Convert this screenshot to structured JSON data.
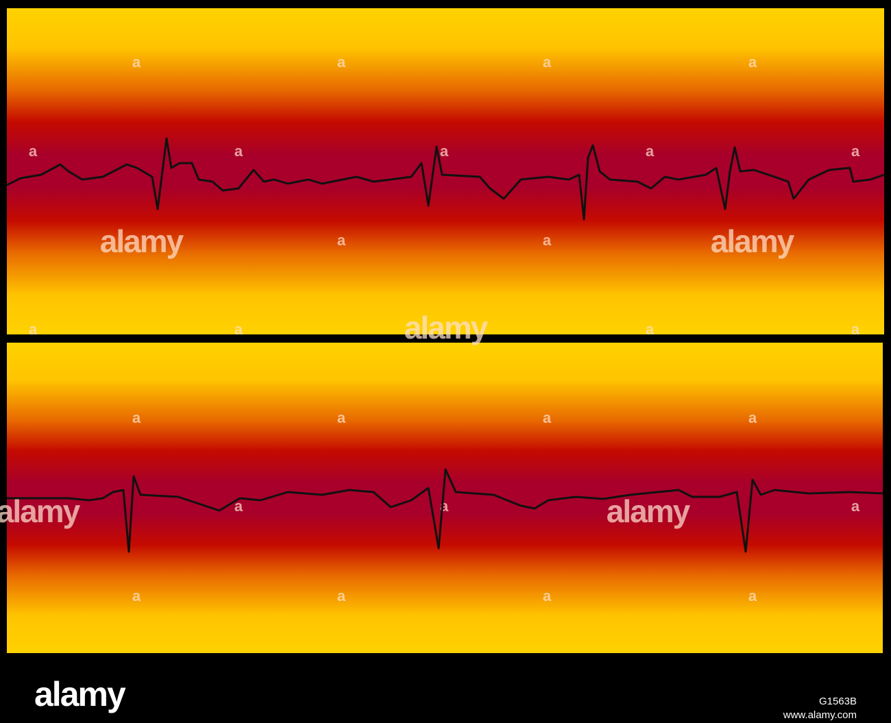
{
  "watermark": {
    "logo": "alamy",
    "letter": "a"
  },
  "footer": {
    "logo": "alamy",
    "image_id": "G1563B",
    "url": "www.alamy.com"
  }
}
